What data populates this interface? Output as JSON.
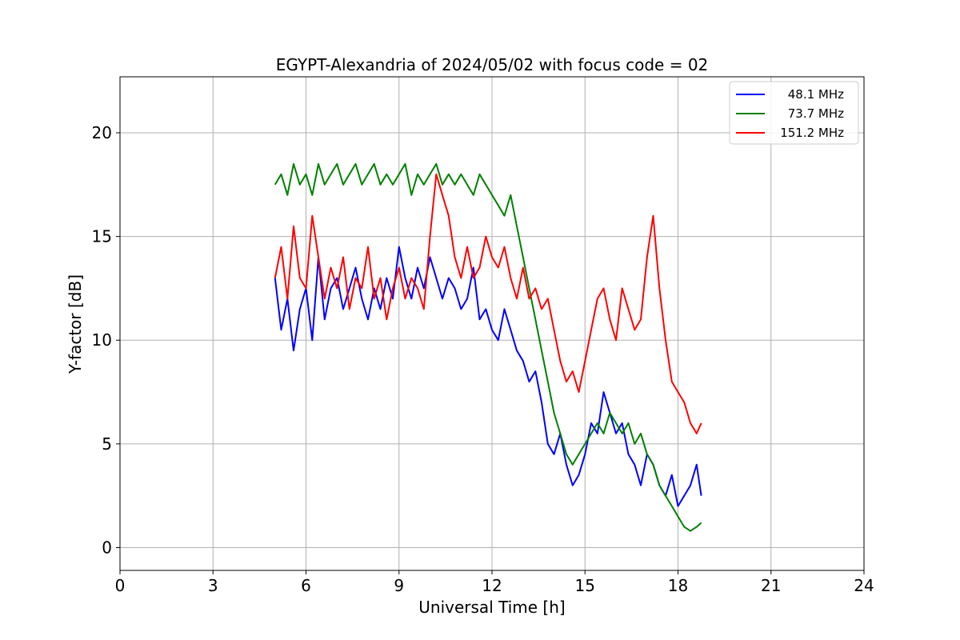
{
  "chart_data": {
    "type": "line",
    "title": "EGYPT-Alexandria of 2024/05/02 with focus code = 02",
    "xlabel": "Universal Time [h]",
    "ylabel": "Y-factor [dB]",
    "xlim": [
      0,
      24
    ],
    "ylim": [
      -1.1,
      22.7
    ],
    "xticks": [
      0,
      3,
      6,
      9,
      12,
      15,
      18,
      21,
      24
    ],
    "yticks": [
      0,
      5,
      10,
      15,
      20
    ],
    "grid": true,
    "legend_position": "top-right",
    "series": [
      {
        "name": "48.1 MHz",
        "color": "#0000ff",
        "x": [
          5.0,
          5.2,
          5.4,
          5.6,
          5.8,
          6.0,
          6.2,
          6.4,
          6.6,
          6.8,
          7.0,
          7.2,
          7.4,
          7.6,
          7.8,
          8.0,
          8.2,
          8.4,
          8.6,
          8.8,
          9.0,
          9.2,
          9.4,
          9.6,
          9.8,
          10.0,
          10.2,
          10.4,
          10.6,
          10.8,
          11.0,
          11.2,
          11.4,
          11.6,
          11.8,
          12.0,
          12.2,
          12.4,
          12.6,
          12.8,
          13.0,
          13.2,
          13.4,
          13.6,
          13.8,
          14.0,
          14.2,
          14.4,
          14.6,
          14.8,
          15.0,
          15.2,
          15.4,
          15.6,
          15.8,
          16.0,
          16.2,
          16.4,
          16.6,
          16.8,
          17.0,
          17.2,
          17.4,
          17.6,
          17.8,
          18.0,
          18.2,
          18.4,
          18.6,
          18.75
        ],
        "values": [
          13.0,
          10.5,
          12.0,
          9.5,
          11.5,
          12.5,
          10.0,
          14.0,
          11.0,
          12.5,
          13.0,
          11.5,
          12.5,
          13.5,
          12.0,
          11.0,
          12.5,
          11.5,
          13.0,
          12.0,
          14.5,
          13.0,
          12.0,
          13.5,
          12.5,
          14.0,
          13.0,
          12.0,
          13.0,
          12.5,
          11.5,
          12.0,
          13.5,
          11.0,
          11.5,
          10.5,
          10.0,
          11.5,
          10.5,
          9.5,
          9.0,
          8.0,
          8.5,
          7.0,
          5.0,
          4.5,
          5.5,
          4.0,
          3.0,
          3.5,
          4.5,
          6.0,
          5.5,
          7.5,
          6.5,
          5.5,
          6.0,
          4.5,
          4.0,
          3.0,
          4.5,
          4.0,
          3.0,
          2.5,
          3.5,
          2.0,
          2.5,
          3.0,
          4.0,
          2.5
        ]
      },
      {
        "name": "73.7 MHz",
        "color": "#008000",
        "x": [
          5.0,
          5.2,
          5.4,
          5.6,
          5.8,
          6.0,
          6.2,
          6.4,
          6.6,
          6.8,
          7.0,
          7.2,
          7.4,
          7.6,
          7.8,
          8.0,
          8.2,
          8.4,
          8.6,
          8.8,
          9.0,
          9.2,
          9.4,
          9.6,
          9.8,
          10.0,
          10.2,
          10.4,
          10.6,
          10.8,
          11.0,
          11.2,
          11.4,
          11.6,
          11.8,
          12.0,
          12.2,
          12.4,
          12.6,
          12.8,
          13.0,
          13.2,
          13.4,
          13.6,
          13.8,
          14.0,
          14.2,
          14.4,
          14.6,
          14.8,
          15.0,
          15.2,
          15.4,
          15.6,
          15.8,
          16.0,
          16.2,
          16.4,
          16.6,
          16.8,
          17.0,
          17.2,
          17.4,
          17.6,
          17.8,
          18.0,
          18.2,
          18.4,
          18.6,
          18.75
        ],
        "values": [
          17.5,
          18.0,
          17.0,
          18.5,
          17.5,
          18.0,
          17.0,
          18.5,
          17.5,
          18.0,
          18.5,
          17.5,
          18.0,
          18.5,
          17.5,
          18.0,
          18.5,
          17.5,
          18.0,
          17.5,
          18.0,
          18.5,
          17.0,
          18.0,
          17.5,
          18.0,
          18.5,
          17.5,
          18.0,
          17.5,
          18.0,
          17.5,
          17.0,
          18.0,
          17.5,
          17.0,
          16.5,
          16.0,
          17.0,
          15.5,
          14.0,
          12.5,
          11.0,
          9.5,
          8.0,
          6.5,
          5.5,
          4.5,
          4.0,
          4.5,
          5.0,
          5.5,
          6.0,
          5.5,
          6.5,
          6.0,
          5.5,
          6.0,
          5.0,
          5.5,
          4.5,
          4.0,
          3.0,
          2.5,
          2.0,
          1.5,
          1.0,
          0.8,
          1.0,
          1.2
        ]
      },
      {
        "name": "151.2 MHz",
        "color": "#ff0000",
        "x": [
          5.0,
          5.2,
          5.4,
          5.6,
          5.8,
          6.0,
          6.2,
          6.4,
          6.6,
          6.8,
          7.0,
          7.2,
          7.4,
          7.6,
          7.8,
          8.0,
          8.2,
          8.4,
          8.6,
          8.8,
          9.0,
          9.2,
          9.4,
          9.6,
          9.8,
          10.0,
          10.2,
          10.4,
          10.6,
          10.8,
          11.0,
          11.2,
          11.4,
          11.6,
          11.8,
          12.0,
          12.2,
          12.4,
          12.6,
          12.8,
          13.0,
          13.2,
          13.4,
          13.6,
          13.8,
          14.0,
          14.2,
          14.4,
          14.6,
          14.8,
          15.0,
          15.2,
          15.4,
          15.6,
          15.8,
          16.0,
          16.2,
          16.4,
          16.6,
          16.8,
          17.0,
          17.2,
          17.4,
          17.6,
          17.8,
          18.0,
          18.2,
          18.4,
          18.6,
          18.75
        ],
        "values": [
          13.0,
          14.5,
          12.0,
          15.5,
          13.0,
          12.5,
          16.0,
          14.0,
          12.0,
          13.5,
          12.5,
          14.0,
          11.5,
          13.0,
          12.5,
          14.5,
          12.0,
          13.0,
          11.0,
          12.5,
          13.5,
          12.0,
          13.0,
          12.5,
          11.5,
          15.0,
          18.0,
          17.0,
          16.0,
          14.0,
          13.0,
          14.5,
          13.0,
          13.5,
          15.0,
          14.0,
          13.5,
          14.5,
          13.0,
          12.0,
          13.5,
          12.0,
          12.5,
          11.5,
          12.0,
          10.5,
          9.0,
          8.0,
          8.5,
          7.5,
          9.0,
          10.5,
          12.0,
          12.5,
          11.0,
          10.0,
          12.5,
          11.5,
          10.5,
          11.0,
          14.0,
          16.0,
          12.5,
          10.0,
          8.0,
          7.5,
          7.0,
          6.0,
          5.5,
          6.0
        ]
      }
    ]
  }
}
